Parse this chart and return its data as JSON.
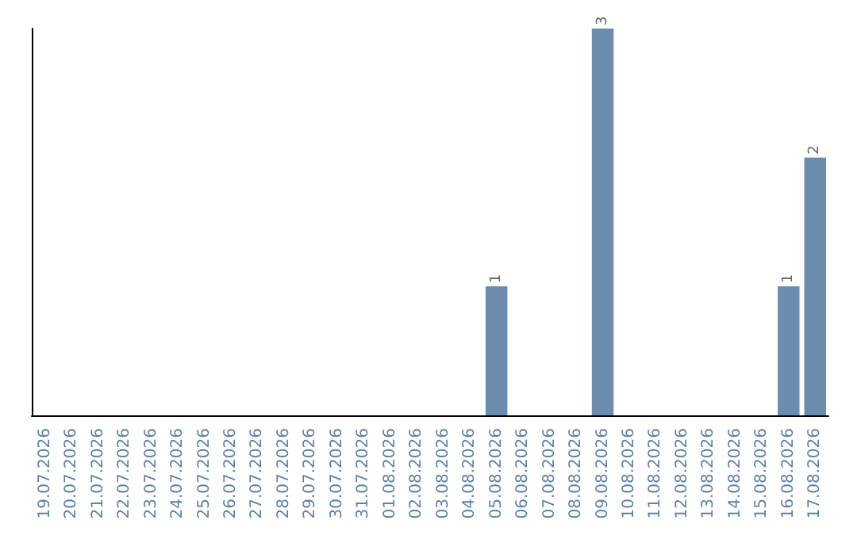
{
  "chart_data": {
    "type": "bar",
    "categories": [
      "19.07.2026",
      "20.07.2026",
      "21.07.2026",
      "22.07.2026",
      "23.07.2026",
      "24.07.2026",
      "25.07.2026",
      "26.07.2026",
      "27.07.2026",
      "28.07.2026",
      "29.07.2026",
      "30.07.2026",
      "31.07.2026",
      "01.08.2026",
      "02.08.2026",
      "03.08.2026",
      "04.08.2026",
      "05.08.2026",
      "06.08.2026",
      "07.08.2026",
      "08.08.2026",
      "09.08.2026",
      "10.08.2026",
      "11.08.2026",
      "12.08.2026",
      "13.08.2026",
      "14.08.2026",
      "15.08.2026",
      "16.08.2026",
      "17.08.2026"
    ],
    "values": [
      null,
      null,
      null,
      null,
      null,
      null,
      null,
      null,
      null,
      null,
      null,
      null,
      null,
      null,
      null,
      null,
      null,
      1,
      null,
      null,
      null,
      3,
      null,
      null,
      null,
      null,
      null,
      null,
      1,
      2
    ],
    "data_labels": true,
    "color": "#6b8cae",
    "grid": false,
    "tick_labels": "x"
  }
}
